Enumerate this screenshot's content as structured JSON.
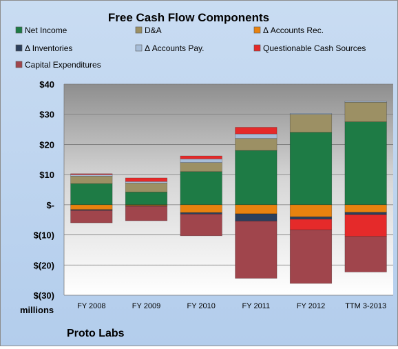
{
  "chart_data": {
    "type": "bar",
    "stacked": true,
    "title": "Free Cash Flow Components",
    "units_label": "millions",
    "company": "Proto Labs",
    "categories": [
      "FY 2008",
      "FY 2009",
      "FY 2010",
      "FY 2011",
      "FY 2012",
      "TTM 3-2013"
    ],
    "ylim": [
      -30,
      40
    ],
    "yticks": [
      40,
      30,
      20,
      10,
      0,
      -10,
      -20,
      -30
    ],
    "ytick_labels": [
      "$40",
      "$30",
      "$20",
      "$10",
      "$-",
      "$(10)",
      "$(20)",
      "$(30)"
    ],
    "grid": true,
    "legend_position": "top",
    "series": [
      {
        "name": "Net Income",
        "color": "#1e7b45",
        "values": [
          7.0,
          4.2,
          11.0,
          18.0,
          24.0,
          27.5
        ]
      },
      {
        "name": "D&A",
        "color": "#9c9064",
        "values": [
          2.5,
          3.0,
          3.0,
          4.0,
          6.0,
          6.5
        ]
      },
      {
        "name": "Δ Accounts Rec.",
        "color": "#e8820f",
        "values": [
          -1.6,
          -0.3,
          -2.6,
          -3.0,
          -4.0,
          -2.5
        ]
      },
      {
        "name": "Δ Inventories",
        "color": "#2b3f5c",
        "values": [
          -0.3,
          -0.2,
          -0.5,
          -2.4,
          -0.8,
          -0.8
        ]
      },
      {
        "name": "Δ Accounts Pay.",
        "color": "#a7bdd8",
        "values": [
          0.5,
          0.5,
          1.2,
          1.5,
          0.3,
          0.3
        ]
      },
      {
        "name": "Questionable Cash Sources",
        "color": "#e52a2a",
        "values": [
          0.3,
          1.2,
          1.0,
          2.2,
          -3.5,
          -7.2
        ]
      },
      {
        "name": "Capital Expenditures",
        "color": "#a0454c",
        "values": [
          -4.1,
          -4.8,
          -7.2,
          -19.0,
          -17.8,
          -11.8
        ]
      }
    ]
  }
}
